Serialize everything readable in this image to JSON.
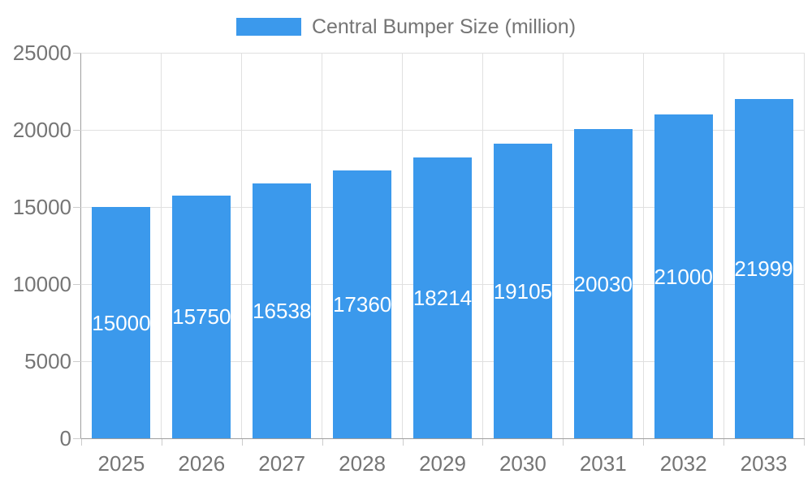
{
  "legend": {
    "label": "Central Bumper Size (million)"
  },
  "chart_data": {
    "type": "bar",
    "title": "",
    "xlabel": "",
    "ylabel": "",
    "categories": [
      "2025",
      "2026",
      "2027",
      "2028",
      "2029",
      "2030",
      "2031",
      "2032",
      "2033"
    ],
    "values": [
      15000,
      15750,
      16538,
      17360,
      18214,
      19105,
      20030,
      21000,
      21999
    ],
    "series_name": "Central Bumper Size (million)",
    "ylim": [
      0,
      25000
    ],
    "yticks": [
      0,
      5000,
      10000,
      15000,
      20000,
      25000
    ],
    "grid": true,
    "legend_position": "top",
    "value_labels": "inside-center",
    "colors": {
      "bar": "#3B99EC",
      "grid": "#E0E0E0",
      "axis": "#9E9E9E",
      "tickmark": "#CCCCCC",
      "text": "#757575",
      "value_label": "#FFFFFF",
      "background": "#FFFFFF"
    }
  }
}
